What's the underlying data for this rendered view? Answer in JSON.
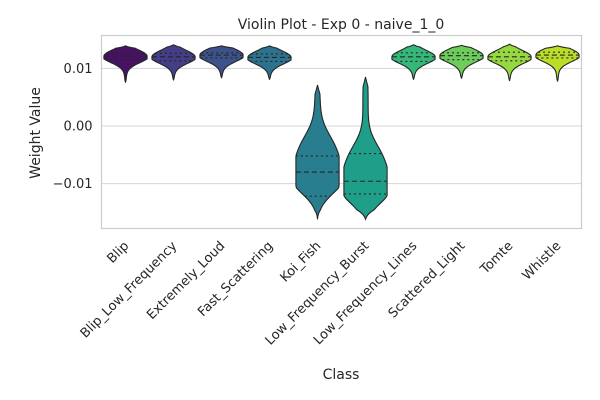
{
  "chart_data": {
    "type": "violin",
    "title": "Violin Plot - Exp 0 - naive_1_0",
    "xlabel": "Class",
    "ylabel": "Weight Value",
    "ylim": [
      -0.0178,
      0.0157
    ],
    "yticks": [
      0.01,
      0.0,
      -0.01
    ],
    "ytick_labels": [
      "0.01",
      "0.00",
      "−0.01"
    ],
    "grid": true,
    "categories": [
      "Blip",
      "Blip_Low_Frequency",
      "Extremely_Loud",
      "Fast_Scattering",
      "Koi_Fish",
      "Low_Frequency_Burst",
      "Low_Frequency_Lines",
      "Scattered_Light",
      "Tomte",
      "Whistle"
    ],
    "colors": [
      "#471164",
      "#433e85",
      "#3b528b",
      "#2c718e",
      "#287d8e",
      "#1f9e89",
      "#35b779",
      "#6ccd5a",
      "#95d840",
      "#bade28"
    ],
    "violins": [
      {
        "min": 0.0075,
        "max": 0.0139,
        "q1": 0.0115,
        "median": 0.0121,
        "q3": 0.0126,
        "width": 0.45,
        "shape": "narrow"
      },
      {
        "min": 0.0079,
        "max": 0.0141,
        "q1": 0.0113,
        "median": 0.012,
        "q3": 0.0126,
        "width": 0.45,
        "shape": "narrow"
      },
      {
        "min": 0.0083,
        "max": 0.0139,
        "q1": 0.0118,
        "median": 0.0123,
        "q3": 0.0127,
        "width": 0.45,
        "shape": "narrow"
      },
      {
        "min": 0.008,
        "max": 0.0139,
        "q1": 0.0112,
        "median": 0.0119,
        "q3": 0.0125,
        "width": 0.45,
        "shape": "narrow"
      },
      {
        "min": -0.0162,
        "max": 0.0071,
        "q1": -0.0122,
        "median": -0.008,
        "q3": -0.0052,
        "width": 0.45,
        "shape": "wide"
      },
      {
        "min": -0.0162,
        "max": 0.0085,
        "q1": -0.0118,
        "median": -0.0096,
        "q3": -0.0048,
        "width": 0.45,
        "shape": "wide"
      },
      {
        "min": 0.008,
        "max": 0.0141,
        "q1": 0.0112,
        "median": 0.012,
        "q3": 0.0127,
        "width": 0.45,
        "shape": "narrow"
      },
      {
        "min": 0.0082,
        "max": 0.014,
        "q1": 0.0115,
        "median": 0.0122,
        "q3": 0.0127,
        "width": 0.45,
        "shape": "narrow"
      },
      {
        "min": 0.0078,
        "max": 0.0142,
        "q1": 0.0113,
        "median": 0.012,
        "q3": 0.0128,
        "width": 0.45,
        "shape": "narrow"
      },
      {
        "min": 0.0077,
        "max": 0.0139,
        "q1": 0.0118,
        "median": 0.0123,
        "q3": 0.0128,
        "width": 0.45,
        "shape": "narrow"
      }
    ]
  }
}
